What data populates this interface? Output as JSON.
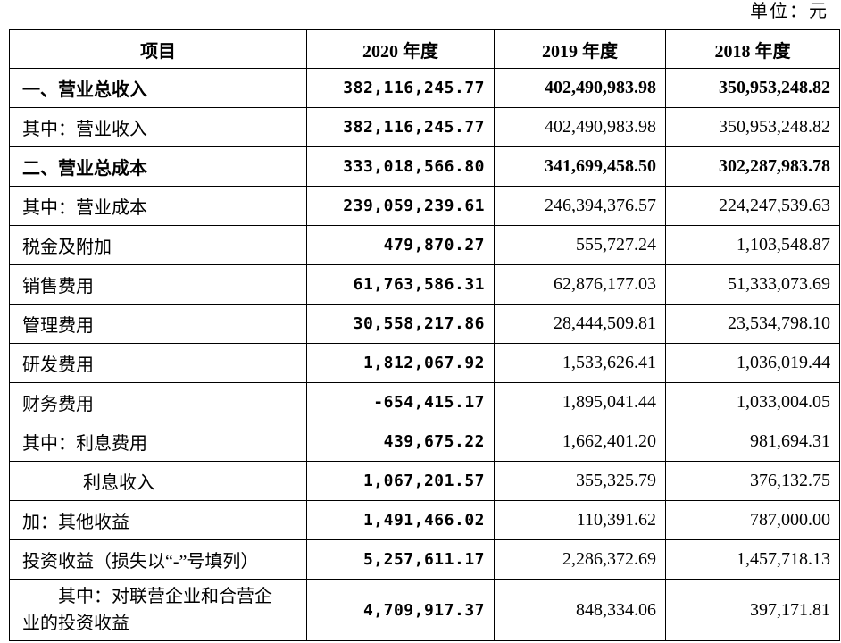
{
  "unit": "单位：元",
  "table": {
    "header": [
      "项目",
      "2020 年度",
      "2019 年度",
      "2018 年度"
    ],
    "rows": [
      [
        "一、营业总收入",
        "382,116,245.77",
        "402,490,983.98",
        "350,953,248.82"
      ],
      [
        "其中：营业收入",
        "382,116,245.77",
        "402,490,983.98",
        "350,953,248.82"
      ],
      [
        "二、营业总成本",
        "333,018,566.80",
        "341,699,458.50",
        "302,287,983.78"
      ],
      [
        "其中：营业成本",
        "239,059,239.61",
        "246,394,376.57",
        "224,247,539.63"
      ],
      [
        "税金及附加",
        "479,870.27",
        "555,727.24",
        "1,103,548.87"
      ],
      [
        "销售费用",
        "61,763,586.31",
        "62,876,177.03",
        "51,333,073.69"
      ],
      [
        "管理费用",
        "30,558,217.86",
        "28,444,509.81",
        "23,534,798.10"
      ],
      [
        "研发费用",
        "1,812,067.92",
        "1,533,626.41",
        "1,036,019.44"
      ],
      [
        "财务费用",
        "-654,415.17",
        "1,895,041.44",
        "1,033,004.05"
      ],
      [
        "其中：利息费用",
        "439,675.22",
        "1,662,401.20",
        "981,694.31"
      ],
      [
        "利息收入",
        "1,067,201.57",
        "355,325.79",
        "376,132.75"
      ],
      [
        "加：其他收益",
        "1,491,466.02",
        "110,391.62",
        "787,000.00"
      ],
      [
        "投资收益（损失以“-”号填列）",
        "5,257,611.17",
        "2,286,372.69",
        "1,457,718.13"
      ],
      [
        "其中：对联营企业和合营企业的投资收益",
        "4,709,917.37",
        "848,334.06",
        "397,171.81"
      ]
    ]
  }
}
